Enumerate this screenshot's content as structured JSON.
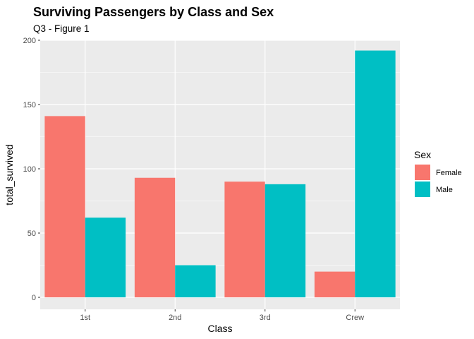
{
  "chart_data": {
    "type": "bar",
    "title": "Surviving Passengers by Class and Sex",
    "subtitle": "Q3 - Figure 1",
    "xlabel": "Class",
    "ylabel": "total_survived",
    "categories": [
      "1st",
      "2nd",
      "3rd",
      "Crew"
    ],
    "series": [
      {
        "name": "Female",
        "color": "#F8766D",
        "values": [
          141,
          93,
          90,
          20
        ]
      },
      {
        "name": "Male",
        "color": "#00BFC4",
        "values": [
          62,
          25,
          88,
          192
        ]
      }
    ],
    "ylim": [
      0,
      202
    ],
    "yticks": [
      0,
      50,
      100,
      150,
      200
    ],
    "grid": true,
    "legend": {
      "title": "Sex",
      "position": "right"
    },
    "panel_background": "#EBEBEB",
    "bar_mode": "dodge"
  }
}
